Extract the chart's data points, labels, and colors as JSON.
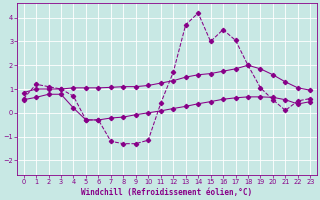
{
  "xlabel": "Windchill (Refroidissement éolien,°C)",
  "bg_color": "#c8e8e4",
  "grid_color": "#ffffff",
  "line_color": "#880088",
  "xlim": [
    -0.5,
    23.5
  ],
  "ylim": [
    -2.6,
    4.6
  ],
  "xticks": [
    0,
    1,
    2,
    3,
    4,
    5,
    6,
    7,
    8,
    9,
    10,
    11,
    12,
    13,
    14,
    15,
    16,
    17,
    18,
    19,
    20,
    21,
    22,
    23
  ],
  "yticks": [
    -2,
    -1,
    0,
    1,
    2,
    3,
    4
  ],
  "curve1_x": [
    0,
    1,
    2,
    3,
    4,
    5,
    6,
    7,
    8,
    9,
    10,
    11,
    12,
    13,
    14,
    15,
    16,
    17,
    18,
    19,
    20,
    21,
    22,
    23
  ],
  "curve1_y": [
    0.6,
    1.2,
    1.1,
    1.0,
    0.7,
    -0.3,
    -0.3,
    -1.2,
    -1.3,
    -1.3,
    -1.15,
    0.4,
    1.7,
    3.7,
    4.2,
    3.0,
    3.5,
    3.05,
    2.0,
    1.05,
    0.55,
    0.1,
    0.5,
    0.6
  ],
  "curve2_x": [
    0,
    1,
    2,
    3,
    4,
    5,
    6,
    7,
    8,
    9,
    10,
    11,
    12,
    13,
    14,
    15,
    16,
    17,
    18,
    19,
    20,
    21,
    22,
    23
  ],
  "curve2_y": [
    0.85,
    1.0,
    1.0,
    1.0,
    1.05,
    1.05,
    1.05,
    1.07,
    1.1,
    1.1,
    1.15,
    1.25,
    1.35,
    1.5,
    1.6,
    1.65,
    1.75,
    1.85,
    2.0,
    1.85,
    1.6,
    1.3,
    1.05,
    0.95
  ],
  "curve3_x": [
    0,
    1,
    2,
    3,
    4,
    5,
    6,
    7,
    8,
    9,
    10,
    11,
    12,
    13,
    14,
    15,
    16,
    17,
    18,
    19,
    20,
    21,
    22,
    23
  ],
  "curve3_y": [
    0.55,
    0.65,
    0.78,
    0.78,
    0.2,
    -0.3,
    -0.3,
    -0.22,
    -0.18,
    -0.08,
    0.0,
    0.08,
    0.18,
    0.27,
    0.38,
    0.47,
    0.57,
    0.63,
    0.67,
    0.67,
    0.65,
    0.55,
    0.37,
    0.47
  ]
}
